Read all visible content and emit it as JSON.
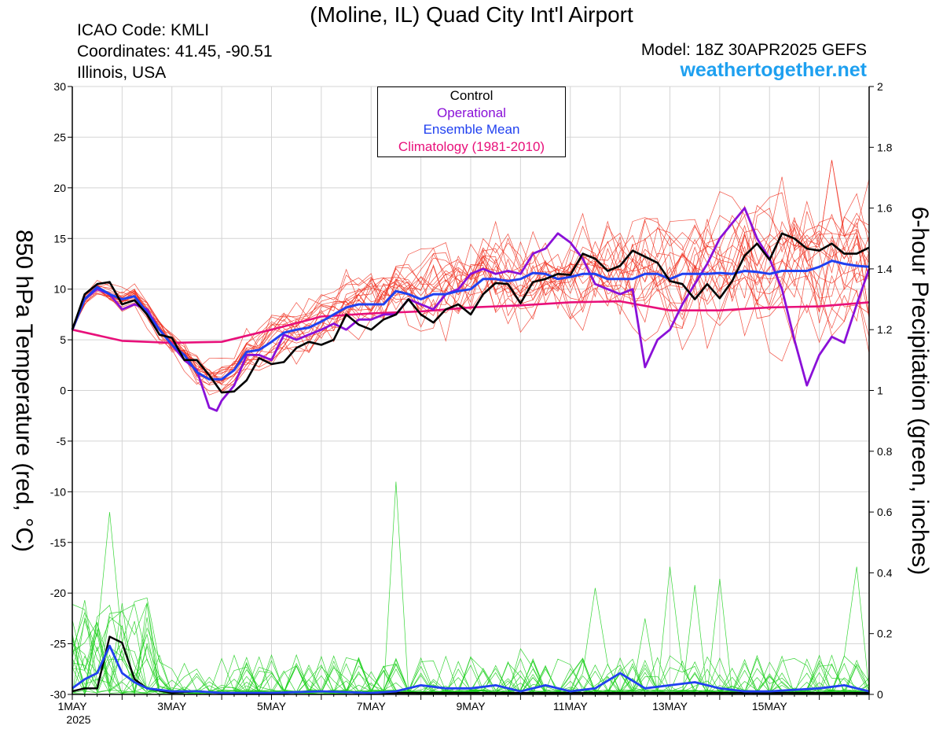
{
  "header": {
    "title": "(Moline, IL) Quad City Int'l Airport",
    "icao": "ICAO Code: KMLI",
    "coords": "Coordinates: 41.45, -90.51",
    "region": "Illinois, USA",
    "model": "Model: 18Z 30APR2025 GEFS",
    "site": "weathertogether.net"
  },
  "legend": {
    "items": [
      {
        "label": "Control",
        "color": "#000000"
      },
      {
        "label": "Operational",
        "color": "#8a10d8"
      },
      {
        "label": "Ensemble Mean",
        "color": "#2040f0"
      },
      {
        "label": "Climatology (1981-2010)",
        "color": "#e8107a"
      }
    ]
  },
  "chart_data": {
    "type": "line",
    "title": "(Moline, IL) Quad City Int'l Airport",
    "ylabel": "850 hPa Temperature (red, °C)",
    "y2label": "6-hour Precipitation (green, inches)",
    "ylim": [
      -30,
      30
    ],
    "y2lim": [
      0,
      2
    ],
    "xlim": [
      0,
      16
    ],
    "yticks": [
      30,
      25,
      20,
      15,
      10,
      5,
      0,
      -5,
      -10,
      -15,
      -20,
      -25,
      -30
    ],
    "y2ticks": [
      "2",
      "1.8",
      "1.6",
      "1.4",
      "1.2",
      "1",
      "0.8",
      "0.6",
      "0.4",
      "0.2",
      "0"
    ],
    "xticks": [
      {
        "day": 0,
        "label": "1MAY",
        "sub": "2025"
      },
      {
        "day": 2,
        "label": "3MAY"
      },
      {
        "day": 4,
        "label": "5MAY"
      },
      {
        "day": 6,
        "label": "7MAY"
      },
      {
        "day": 8,
        "label": "9MAY"
      },
      {
        "day": 10,
        "label": "11MAY"
      },
      {
        "day": 12,
        "label": "13MAY"
      },
      {
        "day": 14,
        "label": "15MAY"
      }
    ],
    "colors": {
      "members_temp": "#f03020",
      "members_precip": "#20d020",
      "control": "#000000",
      "operational": "#8a10d8",
      "mean": "#2040f0",
      "climatology": "#e8107a"
    },
    "series": [
      {
        "name": "Control",
        "role": "control",
        "x": [
          0,
          0.25,
          0.5,
          0.75,
          1,
          1.25,
          1.5,
          1.75,
          2,
          2.25,
          2.5,
          2.75,
          3,
          3.25,
          3.5,
          3.75,
          4,
          4.25,
          4.5,
          4.75,
          5,
          5.25,
          5.5,
          5.75,
          6,
          6.25,
          6.5,
          6.75,
          7,
          7.25,
          7.5,
          7.75,
          8,
          8.25,
          8.5,
          8.75,
          9,
          9.25,
          9.5,
          9.75,
          10,
          10.25,
          10.5,
          10.75,
          11,
          11.25,
          11.5,
          11.75,
          12,
          12.25,
          12.5,
          12.75,
          13,
          13.25,
          13.5,
          13.75,
          14,
          14.25,
          14.5,
          14.75,
          15,
          15.25,
          15.5,
          15.75,
          16
        ],
        "y": [
          6,
          9.5,
          10.5,
          10.7,
          8.5,
          8.9,
          7.5,
          5.5,
          5.2,
          3,
          3,
          1.5,
          -0.2,
          -0.1,
          1,
          3.2,
          2.6,
          2.8,
          4.2,
          4.8,
          4.5,
          5,
          7.5,
          6.5,
          6,
          7,
          7.5,
          9,
          7.5,
          6.7,
          8,
          8.5,
          7.5,
          9.5,
          10.6,
          10.5,
          8.6,
          10.7,
          11,
          11.5,
          11.4,
          13.5,
          13,
          11.8,
          12.3,
          13.8,
          13.2,
          12.6,
          10.8,
          10.5,
          9,
          10.5,
          9.1,
          10.8,
          13.3,
          14.5,
          12.9,
          15.5,
          15,
          14,
          13.8,
          14.5,
          13.5,
          13.5,
          14.1
        ]
      },
      {
        "name": "Operational",
        "role": "operational",
        "x": [
          0,
          0.25,
          0.5,
          0.75,
          1,
          1.25,
          1.5,
          1.75,
          2,
          2.25,
          2.5,
          2.75,
          2.9,
          3,
          3.25,
          3.5,
          3.75,
          4,
          4.25,
          4.5,
          4.75,
          5,
          5.25,
          5.5,
          5.75,
          6,
          6.25,
          6.5,
          6.75,
          7,
          7.25,
          7.5,
          7.75,
          8,
          8.25,
          8.5,
          8.75,
          9,
          9.25,
          9.5,
          9.75,
          10,
          10.25,
          10.5,
          10.75,
          11,
          11.25,
          11.5,
          11.75,
          12,
          12.25,
          12.5,
          12.75,
          13,
          13.25,
          13.5,
          13.75,
          14,
          14.25,
          14.5,
          14.75,
          15,
          15.25,
          15.5,
          15.75,
          16
        ],
        "y": [
          6,
          9,
          10,
          9.5,
          8,
          8.5,
          8,
          6,
          4.5,
          3,
          2,
          -1.7,
          -2,
          -1,
          0.5,
          3.5,
          3.5,
          3,
          5.5,
          5,
          5.5,
          6,
          6.6,
          6,
          7,
          7,
          7.5,
          7.5,
          9,
          8.5,
          8,
          9.5,
          10,
          11.5,
          12,
          11.5,
          11.8,
          11.5,
          13.5,
          14,
          15.5,
          14.6,
          13,
          10.5,
          10,
          9.5,
          10,
          2.3,
          5,
          6,
          8.5,
          10.5,
          12.5,
          15,
          16.5,
          18,
          15,
          13,
          10,
          5,
          0.5,
          3.5,
          5.3,
          4.7,
          8.5,
          12
        ]
      },
      {
        "name": "Ensemble Mean",
        "role": "mean",
        "x": [
          0,
          0.25,
          0.5,
          0.75,
          1,
          1.25,
          1.5,
          1.75,
          2,
          2.25,
          2.5,
          2.75,
          3,
          3.25,
          3.5,
          3.75,
          4,
          4.25,
          4.5,
          4.75,
          5,
          5.25,
          5.5,
          5.75,
          6,
          6.25,
          6.5,
          6.75,
          7,
          7.25,
          7.5,
          7.75,
          8,
          8.25,
          8.5,
          8.75,
          9,
          9.25,
          9.5,
          9.75,
          10,
          10.25,
          10.5,
          10.75,
          11,
          11.25,
          11.5,
          11.75,
          12,
          12.25,
          12.5,
          12.75,
          13,
          13.25,
          13.5,
          13.75,
          14,
          14.25,
          14.5,
          14.75,
          15,
          15.25,
          15.5,
          15.75,
          16
        ],
        "y": [
          6,
          9,
          10.2,
          9.5,
          9,
          9.3,
          7.7,
          6,
          4.5,
          3.5,
          1.8,
          1.1,
          1.1,
          2,
          3.8,
          4,
          4.8,
          5.7,
          6,
          6.2,
          6.8,
          7.5,
          8.2,
          8.5,
          8.5,
          8.5,
          9.8,
          9.5,
          9,
          9.5,
          9.5,
          9.8,
          10,
          11,
          11,
          10.8,
          11,
          11.6,
          11.5,
          11,
          11.2,
          11.5,
          11.5,
          11,
          11,
          11,
          11.5,
          11.5,
          11,
          11.5,
          11.5,
          11.5,
          11.6,
          11.5,
          11.8,
          11.7,
          11.5,
          11.8,
          11.8,
          11.8,
          12.2,
          12.8,
          12.5,
          12.3,
          12.2
        ]
      },
      {
        "name": "Climatology (1981-2010)",
        "role": "climatology",
        "x": [
          0,
          1,
          2,
          3,
          4,
          5,
          6,
          7,
          8,
          9,
          10,
          11,
          12,
          13,
          14,
          15,
          16
        ],
        "y": [
          6,
          4.9,
          4.7,
          4.8,
          6,
          7.3,
          7.6,
          7.8,
          8.2,
          8.4,
          8.7,
          8.8,
          7.9,
          7.9,
          8.2,
          8.3,
          8.7
        ]
      },
      {
        "name": "Ensemble Mean",
        "role": "mean-precip",
        "axis": "right",
        "x": [
          0,
          0.25,
          0.5,
          0.75,
          1,
          1.25,
          1.5,
          2,
          2.5,
          3,
          4,
          5,
          6,
          6.5,
          7,
          7.5,
          8,
          8.5,
          9,
          9.5,
          10,
          10.5,
          11,
          11.5,
          12,
          12.5,
          13,
          13.5,
          14,
          14.5,
          15,
          15.5,
          16
        ],
        "y": [
          0.02,
          0.05,
          0.07,
          0.16,
          0.07,
          0.04,
          0.02,
          0.01,
          0.01,
          0.005,
          0.005,
          0.01,
          0.005,
          0.01,
          0.03,
          0.02,
          0.02,
          0.03,
          0.01,
          0.03,
          0.01,
          0.02,
          0.07,
          0.02,
          0.03,
          0.04,
          0.02,
          0.01,
          0.01,
          0.015,
          0.02,
          0.03,
          0.01
        ]
      },
      {
        "name": "Control",
        "role": "control-precip",
        "axis": "right",
        "x": [
          0,
          0.25,
          0.5,
          0.75,
          1,
          1.25,
          1.5,
          2,
          2.5,
          3,
          4,
          5,
          6,
          7,
          8,
          9,
          10,
          11,
          12,
          13,
          14,
          15,
          16
        ],
        "y": [
          0.01,
          0.02,
          0.02,
          0.19,
          0.17,
          0.05,
          0.02,
          0.005,
          0.01,
          0.005,
          0.005,
          0.01,
          0.005,
          0.005,
          0.005,
          0.005,
          0.005,
          0.005,
          0.005,
          0.005,
          0.005,
          0.005,
          0.005
        ]
      }
    ]
  }
}
